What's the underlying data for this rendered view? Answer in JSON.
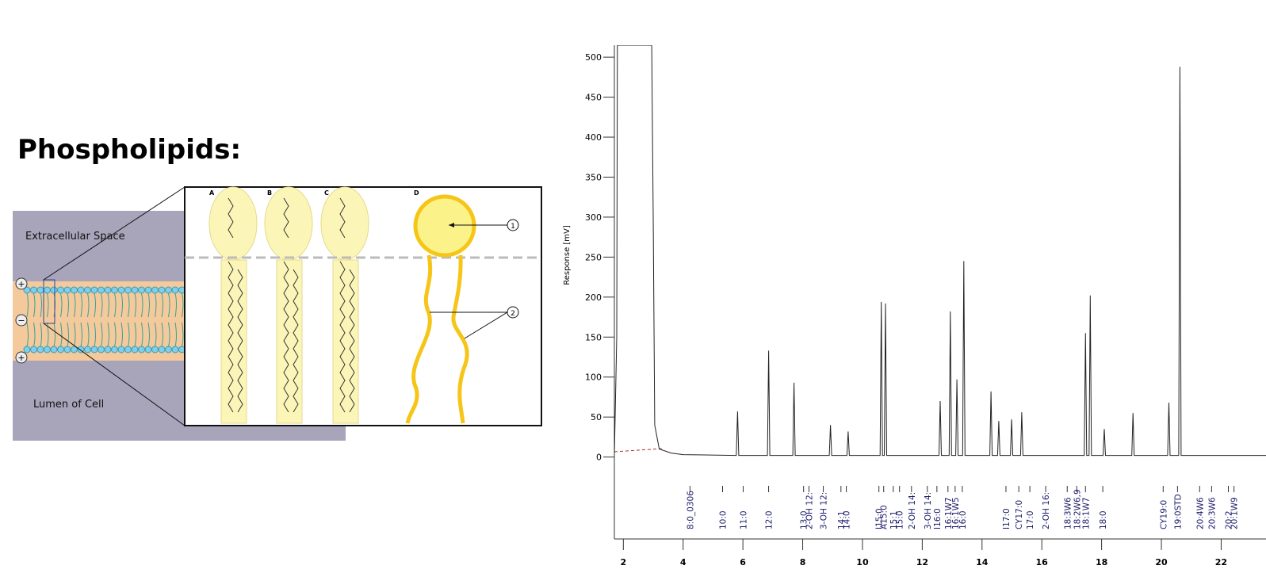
{
  "slide": {
    "title": "Phospholipids:",
    "diagram": {
      "regions": [
        "Extracellular Space",
        "Lumen of Cell"
      ],
      "charges": [
        "+",
        "−",
        "+"
      ],
      "panels": [
        "A",
        "B",
        "C",
        "D"
      ],
      "callouts": [
        "1",
        "2"
      ]
    }
  },
  "chart_data": {
    "type": "line",
    "y_label": "Response [mV]",
    "x": [
      1.7,
      1.78,
      1.8,
      2.95,
      3.0,
      3.05,
      3.2,
      3.6,
      4.0,
      5.78,
      5.82,
      5.86,
      6.82,
      6.86,
      6.9,
      7.67,
      7.71,
      7.75,
      8.89,
      8.93,
      8.97,
      9.48,
      9.52,
      9.56,
      10.59,
      10.63,
      10.67,
      10.73,
      10.77,
      10.81,
      12.56,
      12.6,
      12.64,
      12.9,
      12.94,
      12.98,
      13.12,
      13.16,
      13.2,
      13.35,
      13.39,
      13.43,
      14.26,
      14.3,
      14.34,
      14.52,
      14.56,
      14.6,
      14.95,
      14.99,
      15.03,
      15.29,
      15.33,
      15.37,
      17.42,
      17.46,
      17.5,
      17.58,
      17.62,
      17.66,
      18.05,
      18.09,
      18.13,
      19.01,
      19.05,
      19.09,
      20.21,
      20.25,
      20.29,
      20.58,
      20.62,
      20.66,
      23.5
    ],
    "y": [
      2,
      150,
      515,
      515,
      300,
      40,
      10,
      5,
      3,
      2,
      57,
      2,
      2,
      133,
      2,
      2,
      93,
      2,
      2,
      40,
      2,
      2,
      32,
      2,
      2,
      194,
      2,
      2,
      192,
      2,
      2,
      70,
      2,
      2,
      182,
      2,
      2,
      97,
      2,
      2,
      245,
      2,
      2,
      82,
      2,
      2,
      45,
      2,
      2,
      47,
      2,
      2,
      56,
      2,
      2,
      155,
      2,
      2,
      202,
      2,
      2,
      35,
      2,
      2,
      55,
      2,
      2,
      68,
      2,
      2,
      488,
      2,
      2
    ],
    "color": "#222222",
    "xlim": [
      1.7,
      23.5
    ],
    "xticks": [
      2,
      4,
      6,
      8,
      10,
      12,
      14,
      16,
      18,
      20,
      22
    ],
    "ylim": [
      -40,
      515
    ],
    "yticks": [
      0,
      50,
      100,
      150,
      200,
      250,
      300,
      350,
      400,
      450,
      500
    ],
    "peak_labels": [
      {
        "label": "8:0_0306",
        "x": 4.23
      },
      {
        "label": "10:0",
        "x": 5.32
      },
      {
        "label": "11:0",
        "x": 6.01
      },
      {
        "label": "12:0",
        "x": 6.86
      },
      {
        "label": "13:0",
        "x": 8.03
      },
      {
        "label": "2-OH 12:",
        "x": 8.21
      },
      {
        "label": "3-OH 12:",
        "x": 8.69
      },
      {
        "label": "14:1",
        "x": 9.28
      },
      {
        "label": "14:0",
        "x": 9.46
      },
      {
        "label": "I15:0",
        "x": 10.55
      },
      {
        "label": "A15:0",
        "x": 10.71
      },
      {
        "label": "15:1",
        "x": 11.03
      },
      {
        "label": "15:0",
        "x": 11.24
      },
      {
        "label": "2-OH 14:",
        "x": 11.64
      },
      {
        "label": "3-OH 14:",
        "x": 12.17
      },
      {
        "label": "I16:0",
        "x": 12.49
      },
      {
        "label": "16:1W7",
        "x": 12.86
      },
      {
        "label": "16:1W5",
        "x": 13.1
      },
      {
        "label": "16:0",
        "x": 13.34
      },
      {
        "label": "I17:0",
        "x": 14.8
      },
      {
        "label": "CY17:0",
        "x": 15.23
      },
      {
        "label": "17:0",
        "x": 15.6
      },
      {
        "label": "2-OH 16:",
        "x": 16.13
      },
      {
        "label": "18:3W6",
        "x": 16.85
      },
      {
        "label": "18:2W6,9",
        "x": 17.17
      },
      {
        "label": "18:1W7",
        "x": 17.46
      },
      {
        "label": "18:0",
        "x": 18.04
      },
      {
        "label": "CY19:0",
        "x": 20.06
      },
      {
        "label": "19:0STD",
        "x": 20.54
      },
      {
        "label": "20:4W6",
        "x": 21.28
      },
      {
        "label": "20:3W6",
        "x": 21.68
      },
      {
        "label": "20:2",
        "x": 22.24
      },
      {
        "label": "20:1W9",
        "x": 22.43
      }
    ]
  }
}
